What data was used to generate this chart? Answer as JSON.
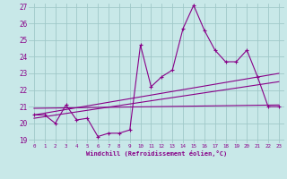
{
  "xlabel": "Windchill (Refroidissement éolien,°C)",
  "bg_color": "#c8e8e8",
  "grid_color": "#a0c8c8",
  "line_color": "#880088",
  "xlim": [
    -0.5,
    23.5
  ],
  "ylim": [
    18.8,
    27.2
  ],
  "yticks": [
    19,
    20,
    21,
    22,
    23,
    24,
    25,
    26,
    27
  ],
  "xticks": [
    0,
    1,
    2,
    3,
    4,
    5,
    6,
    7,
    8,
    9,
    10,
    11,
    12,
    13,
    14,
    15,
    16,
    17,
    18,
    19,
    20,
    21,
    22,
    23
  ],
  "scatter_x": [
    0,
    1,
    2,
    3,
    4,
    5,
    6,
    7,
    8,
    9,
    10,
    11,
    12,
    13,
    14,
    15,
    16,
    17,
    18,
    19,
    20,
    21,
    22,
    23
  ],
  "scatter_y": [
    20.5,
    20.5,
    20.0,
    21.1,
    20.2,
    20.3,
    19.2,
    19.4,
    19.4,
    19.6,
    24.7,
    22.2,
    22.8,
    23.2,
    25.7,
    27.1,
    25.6,
    24.4,
    23.7,
    23.7,
    24.4,
    22.8,
    21.0,
    21.0
  ],
  "reg_line1": {
    "x": [
      0,
      23
    ],
    "y": [
      20.3,
      22.5
    ]
  },
  "reg_line2": {
    "x": [
      0,
      23
    ],
    "y": [
      20.5,
      23.0
    ]
  },
  "horiz_line": {
    "x": [
      0,
      23
    ],
    "y": [
      20.9,
      21.1
    ]
  }
}
